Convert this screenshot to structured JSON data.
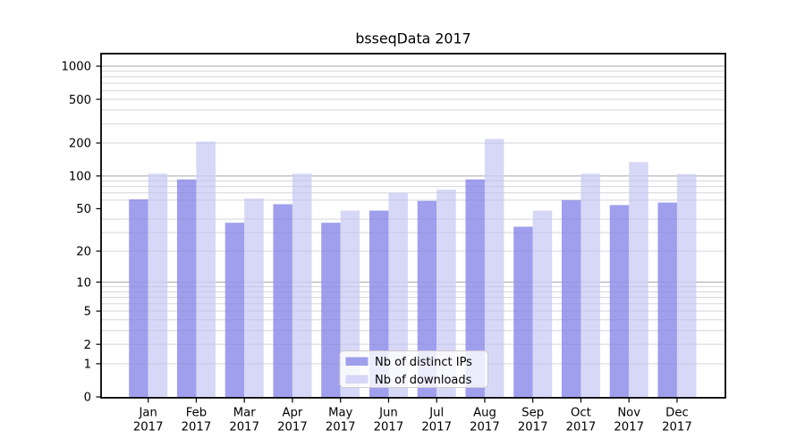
{
  "title": "bsseqData 2017",
  "chart_data": {
    "type": "bar",
    "title": "bsseqData 2017",
    "categories": [
      "Jan 2017",
      "Feb 2017",
      "Mar 2017",
      "Apr 2017",
      "May 2017",
      "Jun 2017",
      "Jul 2017",
      "Aug 2017",
      "Sep 2017",
      "Oct 2017",
      "Nov 2017",
      "Dec 2017"
    ],
    "month_labels": [
      "Jan",
      "Feb",
      "Mar",
      "Apr",
      "May",
      "Jun",
      "Jul",
      "Aug",
      "Sep",
      "Oct",
      "Nov",
      "Dec"
    ],
    "year_label": "2017",
    "series": [
      {
        "name": "Nb of distinct IPs",
        "color": "#9f9fee",
        "values": [
          61,
          93,
          37,
          55,
          37,
          48,
          59,
          93,
          34,
          60,
          54,
          57
        ]
      },
      {
        "name": "Nb of downloads",
        "color": "#d7d7f7",
        "values": [
          105,
          206,
          62,
          105,
          48,
          70,
          75,
          218,
          48,
          105,
          134,
          104
        ]
      }
    ],
    "y_axis": {
      "scale": "log1p",
      "tick_values": [
        0,
        1,
        2,
        5,
        10,
        20,
        50,
        100,
        200,
        500,
        1000
      ],
      "major_grid_values": [
        10,
        100,
        1000
      ],
      "minor_grid_values": [
        1,
        2,
        3,
        4,
        5,
        6,
        7,
        8,
        9,
        20,
        30,
        40,
        60,
        70,
        80,
        90,
        200,
        300,
        400,
        500,
        600,
        700,
        800,
        900
      ],
      "range": [
        0,
        1000
      ]
    },
    "xlabel": "",
    "ylabel": "",
    "grid": true,
    "legend_position": "bottom-center-inside"
  },
  "style": {
    "background": "#ffffff",
    "major_gridline_color": "#b2b2b2",
    "minor_gridline_color": "#e8e8ec",
    "grid_overlay_on_bars": "rgba(90,90,120,0.13)",
    "axis_color": "#000000",
    "text_color": "#000000",
    "legend_background": "rgba(255,255,255,0.8)",
    "legend_border": "#cccccc"
  }
}
